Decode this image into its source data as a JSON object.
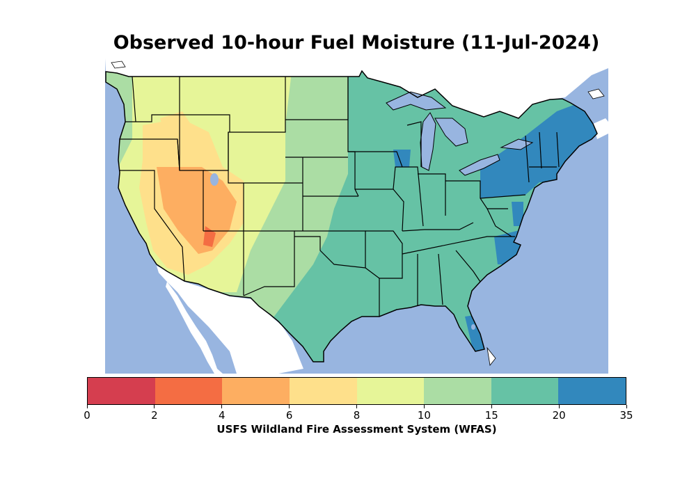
{
  "title": "Observed 10-hour Fuel Moisture (11-Jul-2024)",
  "colorbar": {
    "label": "USFS Wildland Fire Assessment System (WFAS)",
    "ticks": [
      "0",
      "2",
      "4",
      "6",
      "8",
      "10",
      "15",
      "20",
      "35"
    ],
    "colors": [
      "#d53e4f",
      "#f46d43",
      "#fdae61",
      "#fee08b",
      "#e6f598",
      "#abdda4",
      "#66c2a5",
      "#3288bd"
    ]
  },
  "colors": {
    "water": "#98b5e0",
    "land_outside": "#ffffff",
    "border": "#000000"
  }
}
